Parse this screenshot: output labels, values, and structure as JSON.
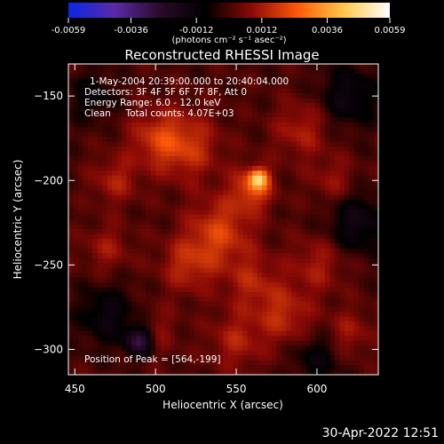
{
  "chart_data": {
    "type": "heatmap",
    "title": "Reconstructed RHESSI Image",
    "xlabel": "Heliocentric X (arcsec)",
    "ylabel": "Heliocentric Y (arcsec)",
    "xlim": [
      446,
      638
    ],
    "ylim": [
      -315,
      -131
    ],
    "x_ticks": [
      450,
      500,
      550,
      600
    ],
    "y_ticks": [
      -300,
      -250,
      -200,
      -150
    ],
    "colorbar": {
      "range": [
        -0.0059,
        0.0059
      ],
      "ticks": [
        "-0.0059",
        "-0.0036",
        "-0.0012",
        "0.0012",
        "0.0036",
        "0.0059"
      ],
      "unit_label": "(photons cm⁻² s⁻¹ asec⁻²)",
      "colors": [
        "#0a28e6",
        "#5a2aa8",
        "#2a0a28",
        "#000000",
        "#8c0a06",
        "#ff5a0a",
        "#ffc84a",
        "#ffffff"
      ]
    },
    "info_lines": [
      "1-May-2004 20:39:00.000 to 20:40:04.000",
      "Detectors: 3F 4F 5F 6F 7F 8F, Att 0",
      "Energy Range: 6.0 - 12.0 keV",
      "Clean     Total counts: 4.07E+03"
    ],
    "peak_label": "Position of Peak = [564,-199]",
    "peak": {
      "x": 564,
      "y": -199,
      "value": 0.0059
    },
    "components": [
      {
        "x": 564,
        "y": -199,
        "amp": 0.0034,
        "sigma": 4
      },
      {
        "x": 560,
        "y": -205,
        "amp": 0.002,
        "sigma": 9
      },
      {
        "x": 520,
        "y": -180,
        "amp": 0.0016,
        "sigma": 14
      },
      {
        "x": 500,
        "y": -175,
        "amp": 0.0014,
        "sigma": 12
      },
      {
        "x": 475,
        "y": -200,
        "amp": 0.0012,
        "sigma": 10
      },
      {
        "x": 540,
        "y": -230,
        "amp": 0.0018,
        "sigma": 14
      },
      {
        "x": 520,
        "y": -250,
        "amp": 0.0014,
        "sigma": 12
      },
      {
        "x": 560,
        "y": -260,
        "amp": 0.0012,
        "sigma": 12
      },
      {
        "x": 580,
        "y": -280,
        "amp": 0.0014,
        "sigma": 12
      },
      {
        "x": 550,
        "y": -295,
        "amp": 0.0012,
        "sigma": 12
      },
      {
        "x": 600,
        "y": -250,
        "amp": 0.0011,
        "sigma": 12
      },
      {
        "x": 620,
        "y": -290,
        "amp": 0.001,
        "sigma": 10
      },
      {
        "x": 590,
        "y": -170,
        "amp": 0.0012,
        "sigma": 12
      },
      {
        "x": 610,
        "y": -200,
        "amp": 0.0009,
        "sigma": 10
      },
      {
        "x": 470,
        "y": -240,
        "amp": 0.001,
        "sigma": 10
      },
      {
        "x": 500,
        "y": -290,
        "amp": 0.0008,
        "sigma": 10
      },
      {
        "x": 490,
        "y": -295,
        "amp": -0.003,
        "sigma": 6
      },
      {
        "x": 470,
        "y": -280,
        "amp": -0.0014,
        "sigma": 12
      },
      {
        "x": 625,
        "y": -225,
        "amp": -0.0016,
        "sigma": 12
      },
      {
        "x": 620,
        "y": -150,
        "amp": -0.0015,
        "sigma": 12
      },
      {
        "x": 460,
        "y": -150,
        "amp": -0.001,
        "sigma": 10
      },
      {
        "x": 600,
        "y": -305,
        "amp": -0.0012,
        "sigma": 10
      }
    ]
  },
  "timestamp": "30-Apr-2022 12:51"
}
